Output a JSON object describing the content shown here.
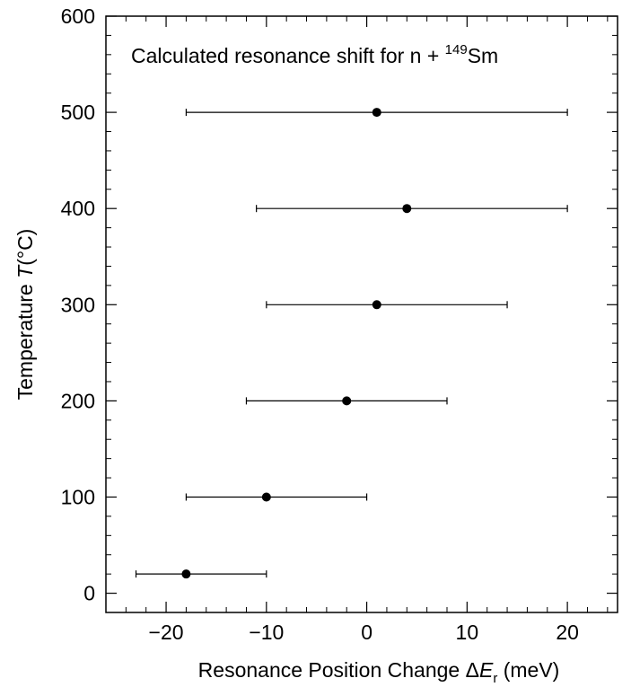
{
  "chart_data": {
    "type": "scatter",
    "title_parts": {
      "prefix": "Calculated resonance shift for n + ",
      "superscript": "149",
      "suffix": "Sm"
    },
    "xlabel_parts": {
      "prefix": "Resonance Position Change Δ",
      "var": "E",
      "subscript": "r",
      "suffix": " (meV)"
    },
    "ylabel_parts": {
      "prefix": "Temperature ",
      "var": "T",
      "suffix": "(°C)"
    },
    "xlim": [
      -26,
      25
    ],
    "ylim": [
      -20,
      600
    ],
    "x_ticks": [
      {
        "value": -20,
        "label": "−20"
      },
      {
        "value": -10,
        "label": "−10"
      },
      {
        "value": 0,
        "label": "0"
      },
      {
        "value": 10,
        "label": "10"
      },
      {
        "value": 20,
        "label": "20"
      }
    ],
    "y_ticks": [
      {
        "value": 0,
        "label": "0"
      },
      {
        "value": 100,
        "label": "100"
      },
      {
        "value": 200,
        "label": "200"
      },
      {
        "value": 300,
        "label": "300"
      },
      {
        "value": 400,
        "label": "400"
      },
      {
        "value": 500,
        "label": "500"
      },
      {
        "value": 600,
        "label": "600"
      }
    ],
    "x_minor_step": 2,
    "y_minor_step": 20,
    "grid": false,
    "colors": {
      "marker": "#000000",
      "errorbar": "#000000",
      "axis": "#000000"
    },
    "points": [
      {
        "x": -18,
        "y": 20,
        "xerr_low": -23,
        "xerr_high": -10
      },
      {
        "x": -10,
        "y": 100,
        "xerr_low": -18,
        "xerr_high": 0
      },
      {
        "x": -2,
        "y": 200,
        "xerr_low": -12,
        "xerr_high": 8
      },
      {
        "x": 1,
        "y": 300,
        "xerr_low": -10,
        "xerr_high": 14
      },
      {
        "x": 4,
        "y": 400,
        "xerr_low": -11,
        "xerr_high": 20
      },
      {
        "x": 1,
        "y": 500,
        "xerr_low": -18,
        "xerr_high": 20
      }
    ]
  }
}
